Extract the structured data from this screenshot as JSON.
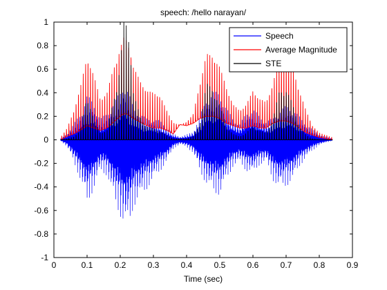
{
  "chart_data": {
    "type": "line",
    "title": "speech: /hello narayan/",
    "xlabel": "Time (sec)",
    "ylabel": "",
    "xlim": [
      0,
      0.9
    ],
    "ylim": [
      -1,
      1
    ],
    "grid": false,
    "legend_position": "top-right",
    "x_ticks": [
      0,
      0.1,
      0.2,
      0.3,
      0.4,
      0.5,
      0.6,
      0.7,
      0.8,
      0.9
    ],
    "x_tick_labels": [
      "0",
      "0.1",
      "0.2",
      "0.3",
      "0.4",
      "0.5",
      "0.6",
      "0.7",
      "0.8",
      "0.9"
    ],
    "y_ticks": [
      -1,
      -0.8,
      -0.6,
      -0.4,
      -0.2,
      0,
      0.2,
      0.4,
      0.6,
      0.8,
      1
    ],
    "y_tick_labels": [
      "-1",
      "-0.8",
      "-0.6",
      "-0.4",
      "-0.2",
      "0",
      "0.2",
      "0.4",
      "0.6",
      "0.8",
      "1"
    ],
    "series": [
      {
        "name": "Speech",
        "color": "#0000ff",
        "style": "oscillating waveform",
        "envelope_x": [
          0.02,
          0.04,
          0.06,
          0.08,
          0.1,
          0.12,
          0.14,
          0.16,
          0.18,
          0.2,
          0.21,
          0.22,
          0.23,
          0.24,
          0.26,
          0.28,
          0.3,
          0.32,
          0.34,
          0.36,
          0.38,
          0.4,
          0.42,
          0.44,
          0.46,
          0.48,
          0.5,
          0.52,
          0.54,
          0.56,
          0.58,
          0.6,
          0.62,
          0.64,
          0.66,
          0.68,
          0.7,
          0.72,
          0.74,
          0.76,
          0.78,
          0.8,
          0.82,
          0.84
        ],
        "envelope_upper": [
          0.01,
          0.06,
          0.15,
          0.25,
          0.42,
          0.35,
          0.2,
          0.25,
          0.35,
          0.45,
          0.55,
          0.5,
          0.4,
          0.3,
          0.25,
          0.2,
          0.2,
          0.18,
          0.12,
          0.06,
          0.03,
          0.05,
          0.08,
          0.22,
          0.4,
          0.45,
          0.45,
          0.3,
          0.2,
          0.15,
          0.25,
          0.3,
          0.22,
          0.18,
          0.2,
          0.28,
          0.32,
          0.3,
          0.22,
          0.15,
          0.1,
          0.05,
          0.03,
          0.01
        ],
        "envelope_lower": [
          -0.01,
          -0.08,
          -0.25,
          -0.45,
          -0.72,
          -0.55,
          -0.35,
          -0.4,
          -0.65,
          -0.85,
          -0.95,
          -0.97,
          -0.9,
          -0.75,
          -0.65,
          -0.55,
          -0.45,
          -0.35,
          -0.25,
          -0.1,
          -0.05,
          -0.08,
          -0.15,
          -0.35,
          -0.5,
          -0.58,
          -0.62,
          -0.45,
          -0.3,
          -0.25,
          -0.35,
          -0.38,
          -0.28,
          -0.25,
          -0.45,
          -0.55,
          -0.52,
          -0.45,
          -0.3,
          -0.2,
          -0.12,
          -0.06,
          -0.03,
          -0.01
        ]
      },
      {
        "name": "Average Magnitude",
        "color": "#ff0000",
        "style": "periodic pulses",
        "envelope_x": [
          0.02,
          0.04,
          0.06,
          0.08,
          0.1,
          0.12,
          0.14,
          0.16,
          0.18,
          0.2,
          0.21,
          0.22,
          0.23,
          0.24,
          0.26,
          0.28,
          0.3,
          0.32,
          0.34,
          0.36,
          0.38,
          0.4,
          0.42,
          0.44,
          0.46,
          0.48,
          0.5,
          0.52,
          0.54,
          0.56,
          0.58,
          0.6,
          0.62,
          0.64,
          0.66,
          0.68,
          0.7,
          0.72,
          0.74,
          0.76,
          0.78,
          0.8,
          0.82,
          0.84
        ],
        "peak": [
          0.02,
          0.1,
          0.25,
          0.45,
          0.72,
          0.55,
          0.35,
          0.4,
          0.62,
          0.78,
          0.87,
          0.85,
          0.78,
          0.62,
          0.5,
          0.42,
          0.4,
          0.38,
          0.25,
          0.15,
          0.12,
          0.15,
          0.22,
          0.48,
          0.73,
          0.72,
          0.62,
          0.45,
          0.3,
          0.25,
          0.3,
          0.42,
          0.35,
          0.32,
          0.48,
          0.72,
          0.73,
          0.62,
          0.42,
          0.25,
          0.12,
          0.06,
          0.04,
          0.02
        ],
        "base": [
          0.0,
          0.03,
          0.05,
          0.08,
          0.12,
          0.1,
          0.08,
          0.1,
          0.15,
          0.2,
          0.22,
          0.22,
          0.2,
          0.18,
          0.15,
          0.12,
          0.1,
          0.1,
          0.08,
          0.05,
          0.13,
          0.12,
          0.14,
          0.18,
          0.2,
          0.2,
          0.18,
          0.14,
          0.12,
          0.1,
          0.1,
          0.12,
          0.1,
          0.1,
          0.14,
          0.16,
          0.16,
          0.14,
          0.1,
          0.06,
          0.04,
          0.02,
          0.01,
          0.0
        ]
      },
      {
        "name": "STE",
        "color": "#000000",
        "style": "periodic pulses",
        "envelope_x": [
          0.02,
          0.04,
          0.06,
          0.08,
          0.1,
          0.12,
          0.14,
          0.16,
          0.18,
          0.2,
          0.21,
          0.22,
          0.23,
          0.24,
          0.26,
          0.28,
          0.3,
          0.32,
          0.34,
          0.36,
          0.38,
          0.4,
          0.42,
          0.44,
          0.46,
          0.48,
          0.5,
          0.52,
          0.54,
          0.56,
          0.58,
          0.6,
          0.62,
          0.64,
          0.66,
          0.68,
          0.7,
          0.72,
          0.74,
          0.76,
          0.78,
          0.8,
          0.82,
          0.84
        ],
        "peak": [
          0.0,
          0.01,
          0.03,
          0.08,
          0.4,
          0.18,
          0.06,
          0.08,
          0.35,
          0.65,
          1.0,
          1.0,
          0.85,
          0.4,
          0.2,
          0.12,
          0.1,
          0.08,
          0.04,
          0.01,
          0.01,
          0.01,
          0.03,
          0.15,
          0.48,
          0.45,
          0.3,
          0.12,
          0.05,
          0.03,
          0.06,
          0.12,
          0.08,
          0.06,
          0.18,
          0.42,
          0.45,
          0.3,
          0.12,
          0.04,
          0.01,
          0.0,
          0.0,
          0.0
        ]
      }
    ]
  }
}
